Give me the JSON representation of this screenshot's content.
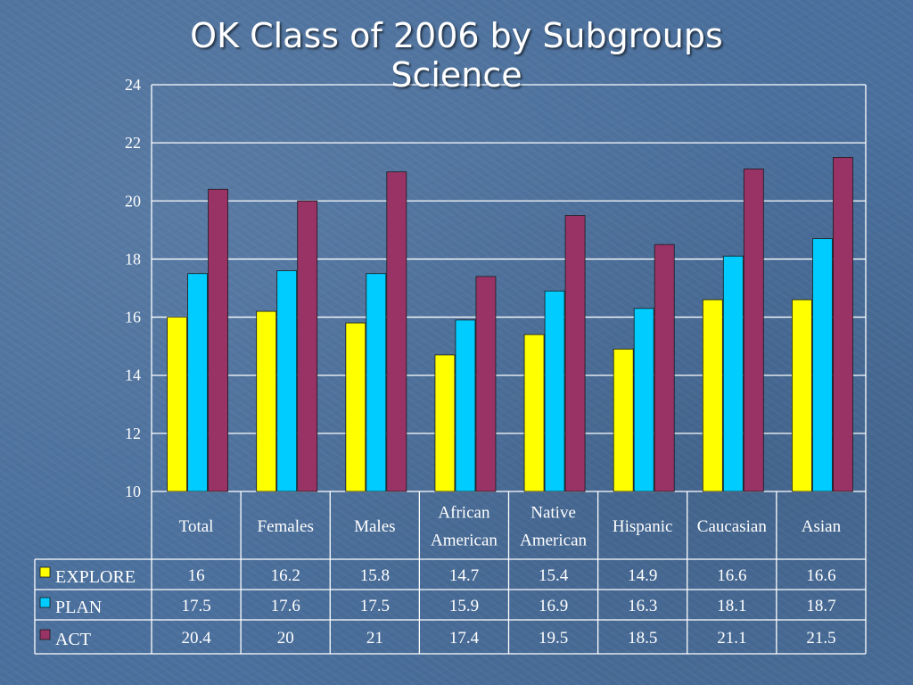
{
  "slide": {
    "title_line1": "OK Class of 2006 by Subgroups",
    "title_line2": "Science"
  },
  "chart_data": {
    "type": "bar",
    "categories": [
      [
        "Total"
      ],
      [
        "Females"
      ],
      [
        "Males"
      ],
      [
        "African",
        "American"
      ],
      [
        "Native",
        "American"
      ],
      [
        "Hispanic"
      ],
      [
        "Caucasian"
      ],
      [
        "Asian"
      ]
    ],
    "series": [
      {
        "name": "EXPLORE",
        "color": "#ffff00",
        "values": [
          16,
          16.2,
          15.8,
          14.7,
          15.4,
          14.9,
          16.6,
          16.6
        ]
      },
      {
        "name": "PLAN",
        "color": "#00ccff",
        "values": [
          17.5,
          17.6,
          17.5,
          15.9,
          16.9,
          16.3,
          18.1,
          18.7
        ]
      },
      {
        "name": "ACT",
        "color": "#993366",
        "values": [
          20.4,
          20,
          21,
          17.4,
          19.5,
          18.5,
          21.1,
          21.5
        ]
      }
    ],
    "ylim": [
      10,
      24
    ],
    "yticks": [
      10,
      12,
      14,
      16,
      18,
      20,
      22,
      24
    ],
    "grid": true,
    "legend": "data-table",
    "data_table": true
  }
}
